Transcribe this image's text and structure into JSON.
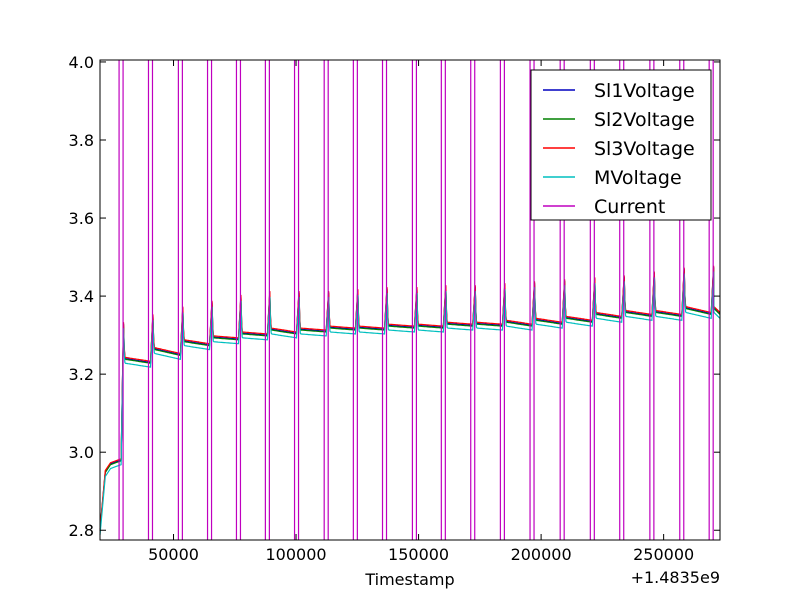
{
  "chart_data": {
    "type": "line",
    "title": "",
    "xlabel": "Timestamp",
    "ylabel": "",
    "x_offset_label": "+1.4835e9",
    "xlim": [
      20000,
      273000
    ],
    "ylim": [
      2.775,
      4.005
    ],
    "xticks": [
      {
        "value": 50000,
        "label": "50000"
      },
      {
        "value": 100000,
        "label": "100000"
      },
      {
        "value": 150000,
        "label": "150000"
      },
      {
        "value": 200000,
        "label": "200000"
      },
      {
        "value": 250000,
        "label": "250000"
      }
    ],
    "yticks": [
      {
        "value": 2.8,
        "label": "2.8"
      },
      {
        "value": 3.0,
        "label": "3.0"
      },
      {
        "value": 3.2,
        "label": "3.2"
      },
      {
        "value": 3.4,
        "label": "3.4"
      },
      {
        "value": 3.6,
        "label": "3.6"
      },
      {
        "value": 3.8,
        "label": "3.8"
      },
      {
        "value": 4.0,
        "label": "4.0"
      }
    ],
    "grid": false,
    "legend": {
      "position": "top-right"
    },
    "cycles": [
      {
        "start": 20000,
        "end": 28600,
        "peak": 3.28,
        "settle": 3.19,
        "final": 3.18
      },
      {
        "start": 29600,
        "end": 40600,
        "peak": 3.33,
        "settle": 3.24,
        "final": 3.23
      },
      {
        "start": 41600,
        "end": 52800,
        "peak": 3.35,
        "settle": 3.265,
        "final": 3.25
      },
      {
        "start": 53800,
        "end": 64700,
        "peak": 3.37,
        "settle": 3.285,
        "final": 3.275
      },
      {
        "start": 65700,
        "end": 76500,
        "peak": 3.385,
        "settle": 3.295,
        "final": 3.29
      },
      {
        "start": 77500,
        "end": 88300,
        "peak": 3.4,
        "settle": 3.305,
        "final": 3.3
      },
      {
        "start": 89300,
        "end": 100200,
        "peak": 3.41,
        "settle": 3.315,
        "final": 3.305
      },
      {
        "start": 101200,
        "end": 112300,
        "peak": 3.41,
        "settle": 3.315,
        "final": 3.31
      },
      {
        "start": 113300,
        "end": 124200,
        "peak": 3.41,
        "settle": 3.32,
        "final": 3.315
      },
      {
        "start": 125200,
        "end": 136100,
        "peak": 3.415,
        "settle": 3.32,
        "final": 3.315
      },
      {
        "start": 137100,
        "end": 148300,
        "peak": 3.42,
        "settle": 3.325,
        "final": 3.32
      },
      {
        "start": 149300,
        "end": 160100,
        "peak": 3.42,
        "settle": 3.325,
        "final": 3.32
      },
      {
        "start": 161100,
        "end": 172100,
        "peak": 3.425,
        "settle": 3.33,
        "final": 3.325
      },
      {
        "start": 173100,
        "end": 184200,
        "peak": 3.425,
        "settle": 3.33,
        "final": 3.325
      },
      {
        "start": 185200,
        "end": 196300,
        "peak": 3.43,
        "settle": 3.335,
        "final": 3.325
      },
      {
        "start": 197300,
        "end": 208600,
        "peak": 3.435,
        "settle": 3.34,
        "final": 3.33
      },
      {
        "start": 209600,
        "end": 220900,
        "peak": 3.44,
        "settle": 3.345,
        "final": 3.335
      },
      {
        "start": 221900,
        "end": 232900,
        "peak": 3.445,
        "settle": 3.355,
        "final": 3.345
      },
      {
        "start": 233900,
        "end": 245200,
        "peak": 3.45,
        "settle": 3.36,
        "final": 3.35
      },
      {
        "start": 246200,
        "end": 257400,
        "peak": 3.46,
        "settle": 3.36,
        "final": 3.35
      },
      {
        "start": 258400,
        "end": 269400,
        "peak": 3.47,
        "settle": 3.37,
        "final": 3.355
      },
      {
        "start": 270400,
        "end": 273000,
        "peak": 3.475,
        "settle": 3.37,
        "final": 3.355
      }
    ],
    "initial_segment": {
      "start": 20000,
      "end": 28600,
      "values": [
        2.8,
        2.95,
        2.97,
        2.975,
        2.98
      ]
    },
    "current_pulses": [
      {
        "x": 28600
      },
      {
        "x": 40600
      },
      {
        "x": 52800
      },
      {
        "x": 64700
      },
      {
        "x": 76500
      },
      {
        "x": 88300
      },
      {
        "x": 100200
      },
      {
        "x": 112300
      },
      {
        "x": 124200
      },
      {
        "x": 136100
      },
      {
        "x": 148300
      },
      {
        "x": 160100
      },
      {
        "x": 172100
      },
      {
        "x": 184200
      },
      {
        "x": 196300
      },
      {
        "x": 208600
      },
      {
        "x": 220900
      },
      {
        "x": 232900
      },
      {
        "x": 245200
      },
      {
        "x": 257400
      },
      {
        "x": 269400
      }
    ],
    "series": [
      {
        "name": "Sl1Voltage",
        "color": "#0000bf",
        "delta": 0.0
      },
      {
        "name": "Sl2Voltage",
        "color": "#008000",
        "delta": -0.002
      },
      {
        "name": "Sl3Voltage",
        "color": "#ff0000",
        "delta": 0.003
      },
      {
        "name": "MVoltage",
        "color": "#00bfbf",
        "delta": -0.012
      },
      {
        "name": "Current",
        "color": "#bf00bf"
      }
    ]
  }
}
